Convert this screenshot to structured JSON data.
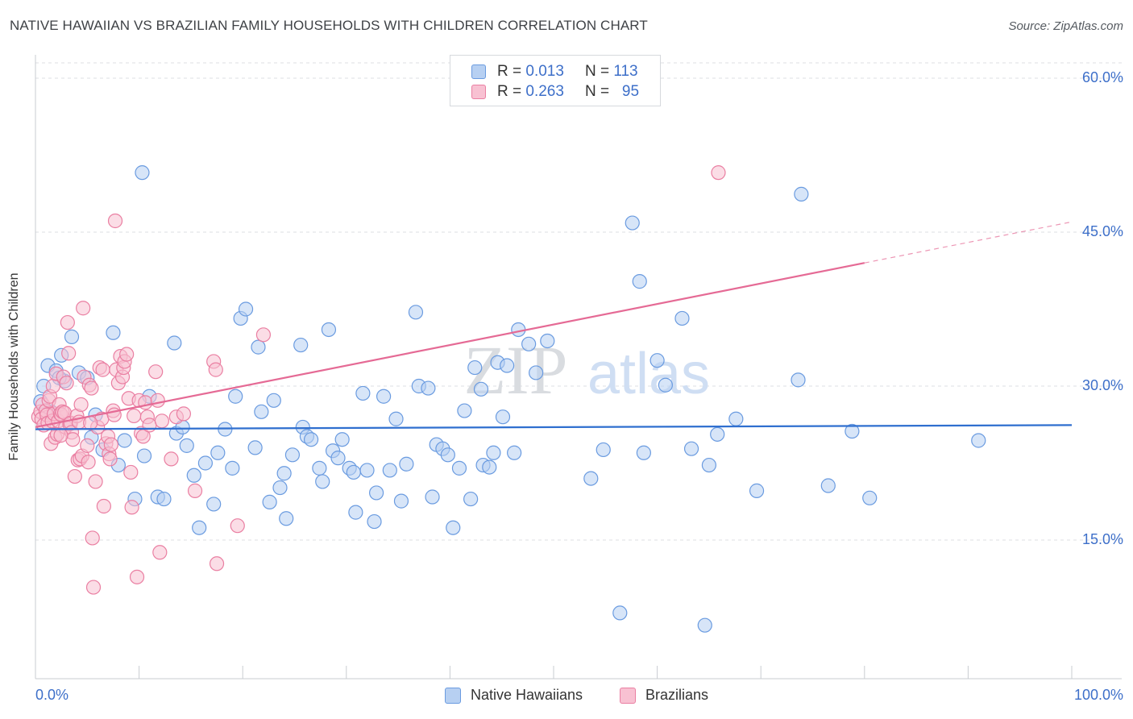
{
  "title": "NATIVE HAWAIIAN VS BRAZILIAN FAMILY HOUSEHOLDS WITH CHILDREN CORRELATION CHART",
  "source": "Source: ZipAtlas.com",
  "watermark": {
    "zip": "ZIP",
    "atlas": "atlas"
  },
  "legend": {
    "rows": [
      {
        "r_label": "R =",
        "r_value": "0.013",
        "n_label": "N =",
        "n_value": "113"
      },
      {
        "r_label": "R =",
        "r_value": "0.263",
        "n_label": "N =",
        "n_value": "95"
      }
    ]
  },
  "colors": {
    "blue_fill": "#b7d0f2",
    "blue_stroke": "#6a9be0",
    "blue_line": "#2f6fcf",
    "pink_fill": "#f8c1d2",
    "pink_stroke": "#ea7fa2",
    "pink_line": "#e56a95",
    "tick_text": "#3d6fc9",
    "grid": "#dcdfe3"
  },
  "chart_data": {
    "type": "scatter",
    "title": "NATIVE HAWAIIAN VS BRAZILIAN FAMILY HOUSEHOLDS WITH CHILDREN CORRELATION CHART",
    "xlabel": "",
    "ylabel": "Family Households with Children",
    "xlim": [
      0,
      100
    ],
    "ylim": [
      0,
      65
    ],
    "x_tick_labels": [
      "0.0%",
      "100.0%"
    ],
    "y_ticks": [
      15,
      30,
      45,
      60
    ],
    "y_tick_labels": [
      "15.0%",
      "30.0%",
      "45.0%",
      "60.0%"
    ],
    "grid": true,
    "legend_position": "top-center",
    "series": [
      {
        "name": "Native Hawaiians",
        "r": 0.013,
        "n": 113,
        "trend": {
          "x0": 0,
          "y0": 25.8,
          "x1": 100,
          "y1": 26.2,
          "solid_until": 100
        },
        "points": [
          [
            0.5,
            28.5
          ],
          [
            0.8,
            30
          ],
          [
            1.2,
            32
          ],
          [
            1.5,
            27.5
          ],
          [
            2,
            31.5
          ],
          [
            2.5,
            33
          ],
          [
            2.8,
            30.5
          ],
          [
            3.5,
            34.8
          ],
          [
            4.2,
            31.3
          ],
          [
            5,
            30.8
          ],
          [
            5.4,
            25
          ],
          [
            5.8,
            27.2
          ],
          [
            6.5,
            23.8
          ],
          [
            7.5,
            35.2
          ],
          [
            8,
            22.3
          ],
          [
            8.6,
            24.7
          ],
          [
            9.6,
            19
          ],
          [
            10.5,
            23.2
          ],
          [
            10.3,
            50.8
          ],
          [
            11,
            29
          ],
          [
            11.8,
            19.2
          ],
          [
            12.4,
            19
          ],
          [
            13.4,
            34.2
          ],
          [
            13.6,
            25.4
          ],
          [
            14.2,
            26
          ],
          [
            14.6,
            24.2
          ],
          [
            15.3,
            21.3
          ],
          [
            15.8,
            16.2
          ],
          [
            16.4,
            22.5
          ],
          [
            17.2,
            18.5
          ],
          [
            17.6,
            23.5
          ],
          [
            18.3,
            25.8
          ],
          [
            19,
            22
          ],
          [
            19.3,
            29
          ],
          [
            19.8,
            36.6
          ],
          [
            20.3,
            37.5
          ],
          [
            21.2,
            24
          ],
          [
            21.5,
            33.8
          ],
          [
            21.8,
            27.5
          ],
          [
            22.6,
            18.7
          ],
          [
            23,
            28.6
          ],
          [
            23.6,
            20.1
          ],
          [
            24,
            21.5
          ],
          [
            24.2,
            17.1
          ],
          [
            24.8,
            23.3
          ],
          [
            25.6,
            34
          ],
          [
            25.8,
            26
          ],
          [
            26.2,
            25.1
          ],
          [
            26.6,
            24.8
          ],
          [
            27.4,
            22
          ],
          [
            27.7,
            20.7
          ],
          [
            28.3,
            35.5
          ],
          [
            28.7,
            23.7
          ],
          [
            29.2,
            23
          ],
          [
            29.6,
            24.8
          ],
          [
            30.3,
            22
          ],
          [
            30.7,
            21.6
          ],
          [
            30.9,
            17.7
          ],
          [
            31.6,
            29.3
          ],
          [
            32,
            21.8
          ],
          [
            32.7,
            16.8
          ],
          [
            32.9,
            19.6
          ],
          [
            33.6,
            29
          ],
          [
            34.2,
            21.8
          ],
          [
            34.8,
            26.8
          ],
          [
            35.3,
            18.8
          ],
          [
            35.8,
            22.4
          ],
          [
            36.7,
            37.2
          ],
          [
            37,
            30
          ],
          [
            37.9,
            29.8
          ],
          [
            38.3,
            19.2
          ],
          [
            38.7,
            24.3
          ],
          [
            39.3,
            23.9
          ],
          [
            39.8,
            23.3
          ],
          [
            40.3,
            16.2
          ],
          [
            40.9,
            22
          ],
          [
            41.4,
            27.6
          ],
          [
            42,
            19
          ],
          [
            42.4,
            31.8
          ],
          [
            43,
            29.7
          ],
          [
            43.2,
            22.3
          ],
          [
            43.8,
            22.1
          ],
          [
            44.2,
            23.5
          ],
          [
            44.6,
            32.3
          ],
          [
            45.1,
            27
          ],
          [
            45.5,
            32
          ],
          [
            46.2,
            23.5
          ],
          [
            46.6,
            35.5
          ],
          [
            47.6,
            34.1
          ],
          [
            48.3,
            31.3
          ],
          [
            49.4,
            34.4
          ],
          [
            53.6,
            21
          ],
          [
            54.8,
            23.8
          ],
          [
            56.4,
            7.9
          ],
          [
            57.6,
            45.9
          ],
          [
            58.3,
            40.2
          ],
          [
            58.7,
            23.5
          ],
          [
            60,
            32.5
          ],
          [
            60.8,
            30.1
          ],
          [
            62.4,
            36.6
          ],
          [
            63.3,
            23.9
          ],
          [
            64.6,
            6.7
          ],
          [
            65,
            22.3
          ],
          [
            65.8,
            25.3
          ],
          [
            67.6,
            26.8
          ],
          [
            69.6,
            19.8
          ],
          [
            73.6,
            30.6
          ],
          [
            73.9,
            48.7
          ],
          [
            76.5,
            20.3
          ],
          [
            78.8,
            25.6
          ],
          [
            80.5,
            19.1
          ],
          [
            91,
            24.7
          ],
          [
            2.3,
            30.8
          ]
        ]
      },
      {
        "name": "Brazilians",
        "r": 0.263,
        "n": 95,
        "trend": {
          "x0": 0,
          "y0": 26,
          "x1": 100,
          "y1": 46,
          "solid_until": 80
        },
        "points": [
          [
            0.3,
            27
          ],
          [
            0.5,
            27.5
          ],
          [
            0.6,
            26.8
          ],
          [
            0.7,
            28.2
          ],
          [
            0.8,
            26.2
          ],
          [
            1,
            27.6
          ],
          [
            1.1,
            27.2
          ],
          [
            1.2,
            26.4
          ],
          [
            1.3,
            28.6
          ],
          [
            1.4,
            29
          ],
          [
            1.5,
            24.4
          ],
          [
            1.6,
            26.6
          ],
          [
            1.7,
            30
          ],
          [
            1.8,
            27.3
          ],
          [
            1.9,
            25
          ],
          [
            2,
            31.2
          ],
          [
            2.1,
            25.3
          ],
          [
            2.2,
            26.6
          ],
          [
            2.3,
            28.2
          ],
          [
            2.4,
            27.3
          ],
          [
            2.5,
            27.2
          ],
          [
            2.6,
            27.5
          ],
          [
            2.7,
            30.9
          ],
          [
            2.8,
            27.4
          ],
          [
            2.9,
            26
          ],
          [
            3,
            30.3
          ],
          [
            3.1,
            36.2
          ],
          [
            3.2,
            33.2
          ],
          [
            3.3,
            26.3
          ],
          [
            3.4,
            26.4
          ],
          [
            3.5,
            25.5
          ],
          [
            3.6,
            24.8
          ],
          [
            3.8,
            21.2
          ],
          [
            4,
            27.1
          ],
          [
            4.1,
            22.8
          ],
          [
            4.2,
            26.5
          ],
          [
            4.3,
            22.9
          ],
          [
            4.4,
            28.2
          ],
          [
            4.5,
            23.2
          ],
          [
            4.6,
            37.6
          ],
          [
            4.7,
            30.9
          ],
          [
            5,
            24.2
          ],
          [
            5.1,
            22.6
          ],
          [
            5.2,
            30.1
          ],
          [
            5.4,
            29.8
          ],
          [
            5.5,
            15.2
          ],
          [
            5.6,
            10.4
          ],
          [
            5.8,
            20.7
          ],
          [
            6,
            26
          ],
          [
            6.2,
            31.8
          ],
          [
            6.4,
            26.8
          ],
          [
            6.5,
            31.6
          ],
          [
            6.6,
            18.3
          ],
          [
            6.8,
            24.4
          ],
          [
            7,
            25.1
          ],
          [
            7.1,
            23.4
          ],
          [
            7.2,
            22.9
          ],
          [
            7.3,
            24.3
          ],
          [
            7.5,
            27.6
          ],
          [
            7.6,
            27.2
          ],
          [
            7.7,
            46.1
          ],
          [
            7.8,
            31.6
          ],
          [
            8,
            30.3
          ],
          [
            8.2,
            32.9
          ],
          [
            8.4,
            30.9
          ],
          [
            8.5,
            31.8
          ],
          [
            8.6,
            32.4
          ],
          [
            8.8,
            33.1
          ],
          [
            9,
            28.8
          ],
          [
            9.2,
            21.6
          ],
          [
            9.3,
            18.2
          ],
          [
            9.5,
            27.1
          ],
          [
            9.8,
            11.4
          ],
          [
            10,
            28.6
          ],
          [
            10.2,
            25.4
          ],
          [
            10.4,
            25.1
          ],
          [
            10.6,
            28.4
          ],
          [
            10.8,
            27
          ],
          [
            11,
            26.2
          ],
          [
            11.6,
            31.4
          ],
          [
            11.8,
            28.6
          ],
          [
            12,
            13.8
          ],
          [
            12.2,
            26.6
          ],
          [
            13.1,
            22.9
          ],
          [
            13.6,
            27
          ],
          [
            14.3,
            27.3
          ],
          [
            15.4,
            19.8
          ],
          [
            17.2,
            32.4
          ],
          [
            17.4,
            31.6
          ],
          [
            17.5,
            12.7
          ],
          [
            19.5,
            16.4
          ],
          [
            22,
            35
          ],
          [
            65.9,
            50.8
          ],
          [
            2.45,
            25.2
          ],
          [
            5.3,
            26.4
          ]
        ]
      }
    ]
  },
  "bottom_legend": {
    "items": [
      "Native Hawaiians",
      "Brazilians"
    ]
  }
}
